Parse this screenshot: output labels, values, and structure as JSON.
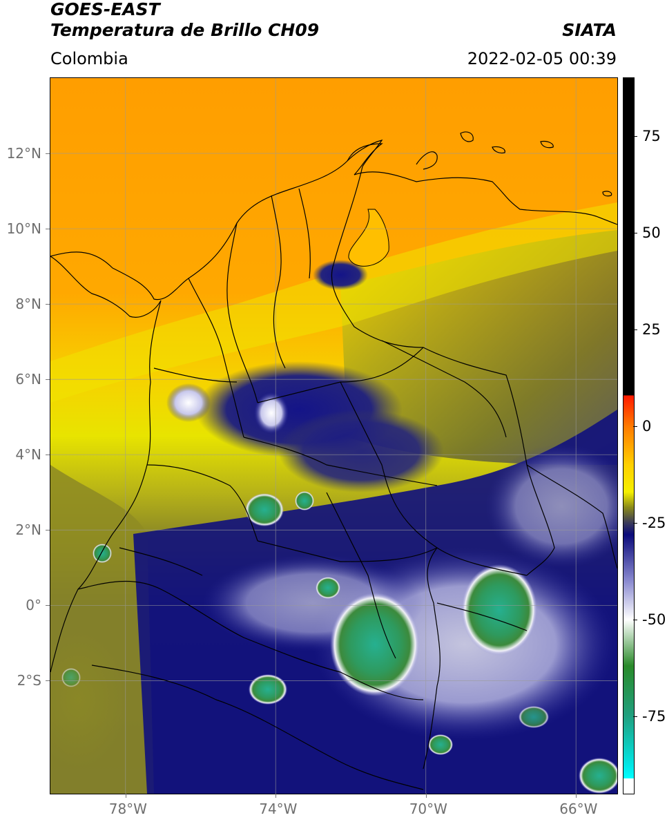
{
  "header": {
    "satellite": "GOES-EAST",
    "product": "Temperatura de Brillo CH09",
    "brand": "SIATA",
    "region": "Colombia",
    "timestamp": "2022-02-05 00:39"
  },
  "map": {
    "longitude_range": [
      -80,
      -64.9
    ],
    "latitude_range": [
      -5,
      14
    ],
    "lat_labels": [
      {
        "value": 12,
        "label": "12°N"
      },
      {
        "value": 10,
        "label": "10°N"
      },
      {
        "value": 8,
        "label": "8°N"
      },
      {
        "value": 6,
        "label": "6°N"
      },
      {
        "value": 4,
        "label": "4°N"
      },
      {
        "value": 2,
        "label": "2°N"
      },
      {
        "value": 0,
        "label": "0°"
      },
      {
        "value": -2,
        "label": "2°S"
      }
    ],
    "lon_labels": [
      {
        "value": -78,
        "label": "78°W"
      },
      {
        "value": -74,
        "label": "74°W"
      },
      {
        "value": -70,
        "label": "70°W"
      },
      {
        "value": -66,
        "label": "66°W"
      }
    ],
    "gridlines": true
  },
  "colorbar": {
    "range": [
      -95,
      90
    ],
    "ticks": [
      {
        "value": 75,
        "label": "75"
      },
      {
        "value": 50,
        "label": "50"
      },
      {
        "value": 25,
        "label": "25"
      },
      {
        "value": 0,
        "label": "0"
      },
      {
        "value": -25,
        "label": "-25"
      },
      {
        "value": -50,
        "label": "-50"
      },
      {
        "value": -75,
        "label": "-75"
      }
    ],
    "stops": [
      {
        "value": 90,
        "color": "#000000"
      },
      {
        "value": 8,
        "color": "#000000"
      },
      {
        "value": 7.9,
        "color": "#ff1a00"
      },
      {
        "value": 0,
        "color": "#ff7a00"
      },
      {
        "value": -10,
        "color": "#ffd000"
      },
      {
        "value": -17,
        "color": "#f5f000"
      },
      {
        "value": -21,
        "color": "#8a8a1a"
      },
      {
        "value": -25,
        "color": "#3a3a5a"
      },
      {
        "value": -28,
        "color": "#0b0b7a"
      },
      {
        "value": -40,
        "color": "#8a8ad0"
      },
      {
        "value": -50,
        "color": "#ffffff"
      },
      {
        "value": -62,
        "color": "#2a8a2a"
      },
      {
        "value": -75,
        "color": "#20a080"
      },
      {
        "value": -88,
        "color": "#00e8e8"
      },
      {
        "value": -91,
        "color": "#00ffff"
      },
      {
        "value": -91.1,
        "color": "#ffffff"
      },
      {
        "value": -95,
        "color": "#ffffff"
      }
    ]
  },
  "colors": {
    "warm_orange": "#ff9a00",
    "dry_yellow": "#f4e600",
    "olive": "#8c8a2a",
    "deep_blue": "#0d0d82",
    "cold_white": "#e8e8f4",
    "cold_green": "#2f9a5a",
    "teal": "#22a88a"
  }
}
